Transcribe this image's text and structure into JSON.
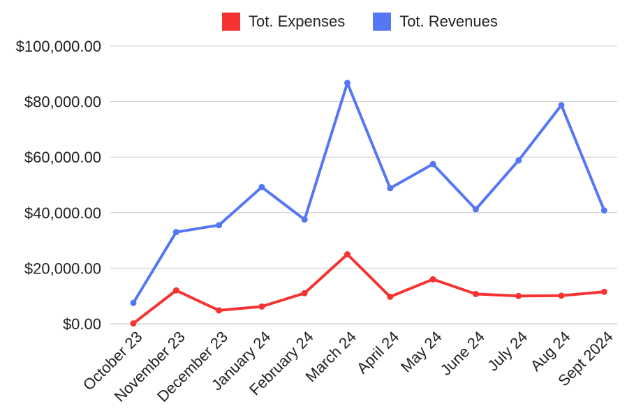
{
  "chart_data": {
    "type": "line",
    "categories": [
      "October 23",
      "November 23",
      "December 23",
      "January 24",
      "February 24",
      "March 24",
      "April 24",
      "May 24",
      "June 24",
      "July 24",
      "Aug 24",
      "Sept 2024"
    ],
    "series": [
      {
        "name": "Tot. Expenses",
        "color": "#f53333",
        "values": [
          100,
          12000,
          4800,
          6200,
          11000,
          25000,
          9700,
          16000,
          10700,
          10000,
          10100,
          11500
        ]
      },
      {
        "name": "Tot. Revenues",
        "color": "#5577f5",
        "values": [
          7500,
          33000,
          35500,
          49200,
          37500,
          86700,
          48800,
          57500,
          41200,
          58800,
          78700,
          40800
        ]
      }
    ],
    "ylim": [
      0,
      100000
    ],
    "yticks": [
      {
        "value": 0,
        "label": "$0.00"
      },
      {
        "value": 20000,
        "label": "$20,000.00"
      },
      {
        "value": 40000,
        "label": "$40,000.00"
      },
      {
        "value": 60000,
        "label": "$60,000.00"
      },
      {
        "value": 80000,
        "label": "$80,000.00"
      },
      {
        "value": 100000,
        "label": "$100,000.00"
      }
    ],
    "grid": true,
    "legend_position": "top-center"
  }
}
